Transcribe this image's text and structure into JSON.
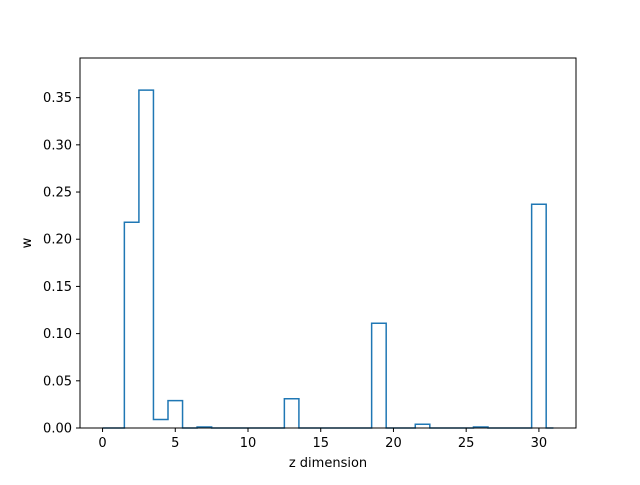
{
  "chart_data": {
    "type": "step",
    "title": "",
    "xlabel": "z dimension",
    "ylabel": "w",
    "x": [
      0,
      1,
      2,
      3,
      4,
      5,
      6,
      7,
      8,
      9,
      10,
      11,
      12,
      13,
      14,
      15,
      16,
      17,
      18,
      19,
      20,
      21,
      22,
      23,
      24,
      25,
      26,
      27,
      28,
      29,
      30,
      31
    ],
    "values": [
      0,
      0,
      0.218,
      0.358,
      0.009,
      0.029,
      0,
      0.001,
      0,
      0,
      0,
      0,
      0,
      0.031,
      0,
      0,
      0,
      0,
      0,
      0.111,
      0,
      0,
      0.004,
      0,
      0,
      0,
      0.001,
      0,
      0,
      0,
      0.237,
      0
    ],
    "step_where": "mid",
    "xlim": [
      -1.55,
      32.55
    ],
    "ylim": [
      0,
      0.392
    ],
    "xticks": [
      0,
      5,
      10,
      15,
      20,
      25,
      30
    ],
    "xtick_labels": [
      "0",
      "5",
      "10",
      "15",
      "20",
      "25",
      "30"
    ],
    "yticks": [
      0,
      0.05,
      0.1,
      0.15,
      0.2,
      0.25,
      0.3,
      0.35
    ],
    "ytick_labels": [
      "0.00",
      "0.05",
      "0.10",
      "0.15",
      "0.20",
      "0.25",
      "0.30",
      "0.35"
    ],
    "grid": false,
    "line_color": "#1f77b4"
  }
}
